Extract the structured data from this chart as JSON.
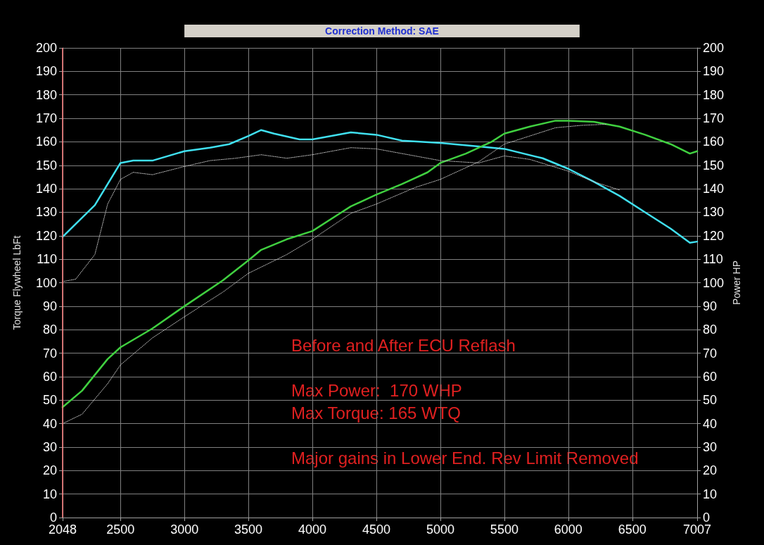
{
  "chart_data": {
    "type": "line",
    "title": "Correction Method: SAE",
    "ylabel": "Torque Flywheel LbFt",
    "y2label": "Power HP",
    "annotations": [
      "Before and After ECU Reflash",
      "Max Power:  170 WHP",
      "Max Torque: 165 WTQ",
      "Major gains in Lower End. Rev Limit Removed"
    ],
    "xlim": [
      2048,
      7007
    ],
    "xticks": [
      2048,
      2500,
      3000,
      3500,
      4000,
      4500,
      5000,
      5500,
      6000,
      6500,
      7007
    ],
    "ylim": [
      0,
      200
    ],
    "yticks": [
      0,
      10,
      20,
      30,
      40,
      50,
      60,
      70,
      80,
      90,
      100,
      110,
      120,
      130,
      140,
      150,
      160,
      170,
      180,
      190,
      200
    ],
    "y2lim": [
      0,
      200
    ],
    "y2ticks": [
      0,
      10,
      20,
      30,
      40,
      50,
      60,
      70,
      80,
      90,
      100,
      110,
      120,
      130,
      140,
      150,
      160,
      170,
      180,
      190,
      200
    ],
    "grid": true,
    "marker": "none",
    "ref_lines": [
      {
        "axis": "x",
        "value": 2048,
        "label": null,
        "color": "#ff8080"
      }
    ],
    "series": [
      {
        "color": "#c8c8c8",
        "line_style": "dotted",
        "x": [
          2048,
          2150,
          2300,
          2400,
          2500,
          2600,
          2750,
          3000,
          3200,
          3400,
          3600,
          3800,
          4000,
          4300,
          4500,
          4700,
          5000,
          5300,
          5500,
          5700,
          6000,
          6200,
          6400
        ],
        "values": [
          100.5,
          101.5,
          112,
          133.5,
          144,
          147,
          146,
          149.5,
          152,
          153,
          154.5,
          153,
          154.5,
          157.5,
          157,
          155,
          152,
          151,
          154,
          152.5,
          147.5,
          143,
          139.5
        ]
      },
      {
        "color": "#c8c8c8",
        "line_style": "dotted",
        "x": [
          2048,
          2200,
          2400,
          2500,
          2750,
          3000,
          3300,
          3500,
          3800,
          4000,
          4300,
          4500,
          4800,
          5000,
          5300,
          5500,
          5700,
          5900,
          6100,
          6300
        ],
        "values": [
          40,
          44,
          57,
          65,
          76.5,
          85.5,
          96,
          104,
          112,
          118.5,
          129.5,
          133.5,
          140.5,
          144,
          151.5,
          159,
          162.5,
          166,
          167,
          167.5
        ]
      },
      {
        "color": "#40e0f0",
        "line_style": "solid",
        "x": [
          2048,
          2150,
          2300,
          2400,
          2500,
          2600,
          2750,
          3000,
          3200,
          3350,
          3500,
          3600,
          3700,
          3900,
          4000,
          4300,
          4500,
          4700,
          5000,
          5300,
          5500,
          5800,
          6000,
          6200,
          6400,
          6600,
          6800,
          6950,
          7007
        ],
        "values": [
          119.5,
          125,
          133,
          142,
          151,
          152,
          152,
          156,
          157.5,
          159,
          162.5,
          165,
          163.5,
          161,
          161,
          164,
          163,
          160.5,
          159.5,
          158,
          157,
          153,
          148.5,
          143,
          137,
          130,
          123,
          117,
          117.5
        ]
      },
      {
        "color": "#40d040",
        "line_style": "solid",
        "x": [
          2048,
          2200,
          2400,
          2500,
          2750,
          3000,
          3300,
          3500,
          3600,
          3800,
          4000,
          4200,
          4300,
          4500,
          4700,
          4900,
          5000,
          5200,
          5400,
          5500,
          5700,
          5900,
          6000,
          6200,
          6400,
          6600,
          6800,
          6950,
          7007
        ],
        "values": [
          47,
          54,
          67.5,
          72.5,
          80.5,
          90,
          101,
          109.5,
          114,
          118.5,
          122,
          129,
          132.5,
          137.5,
          142,
          147,
          151,
          155,
          160,
          163.5,
          166.5,
          169,
          169,
          168.5,
          166.5,
          163,
          159,
          155,
          156
        ]
      }
    ]
  }
}
